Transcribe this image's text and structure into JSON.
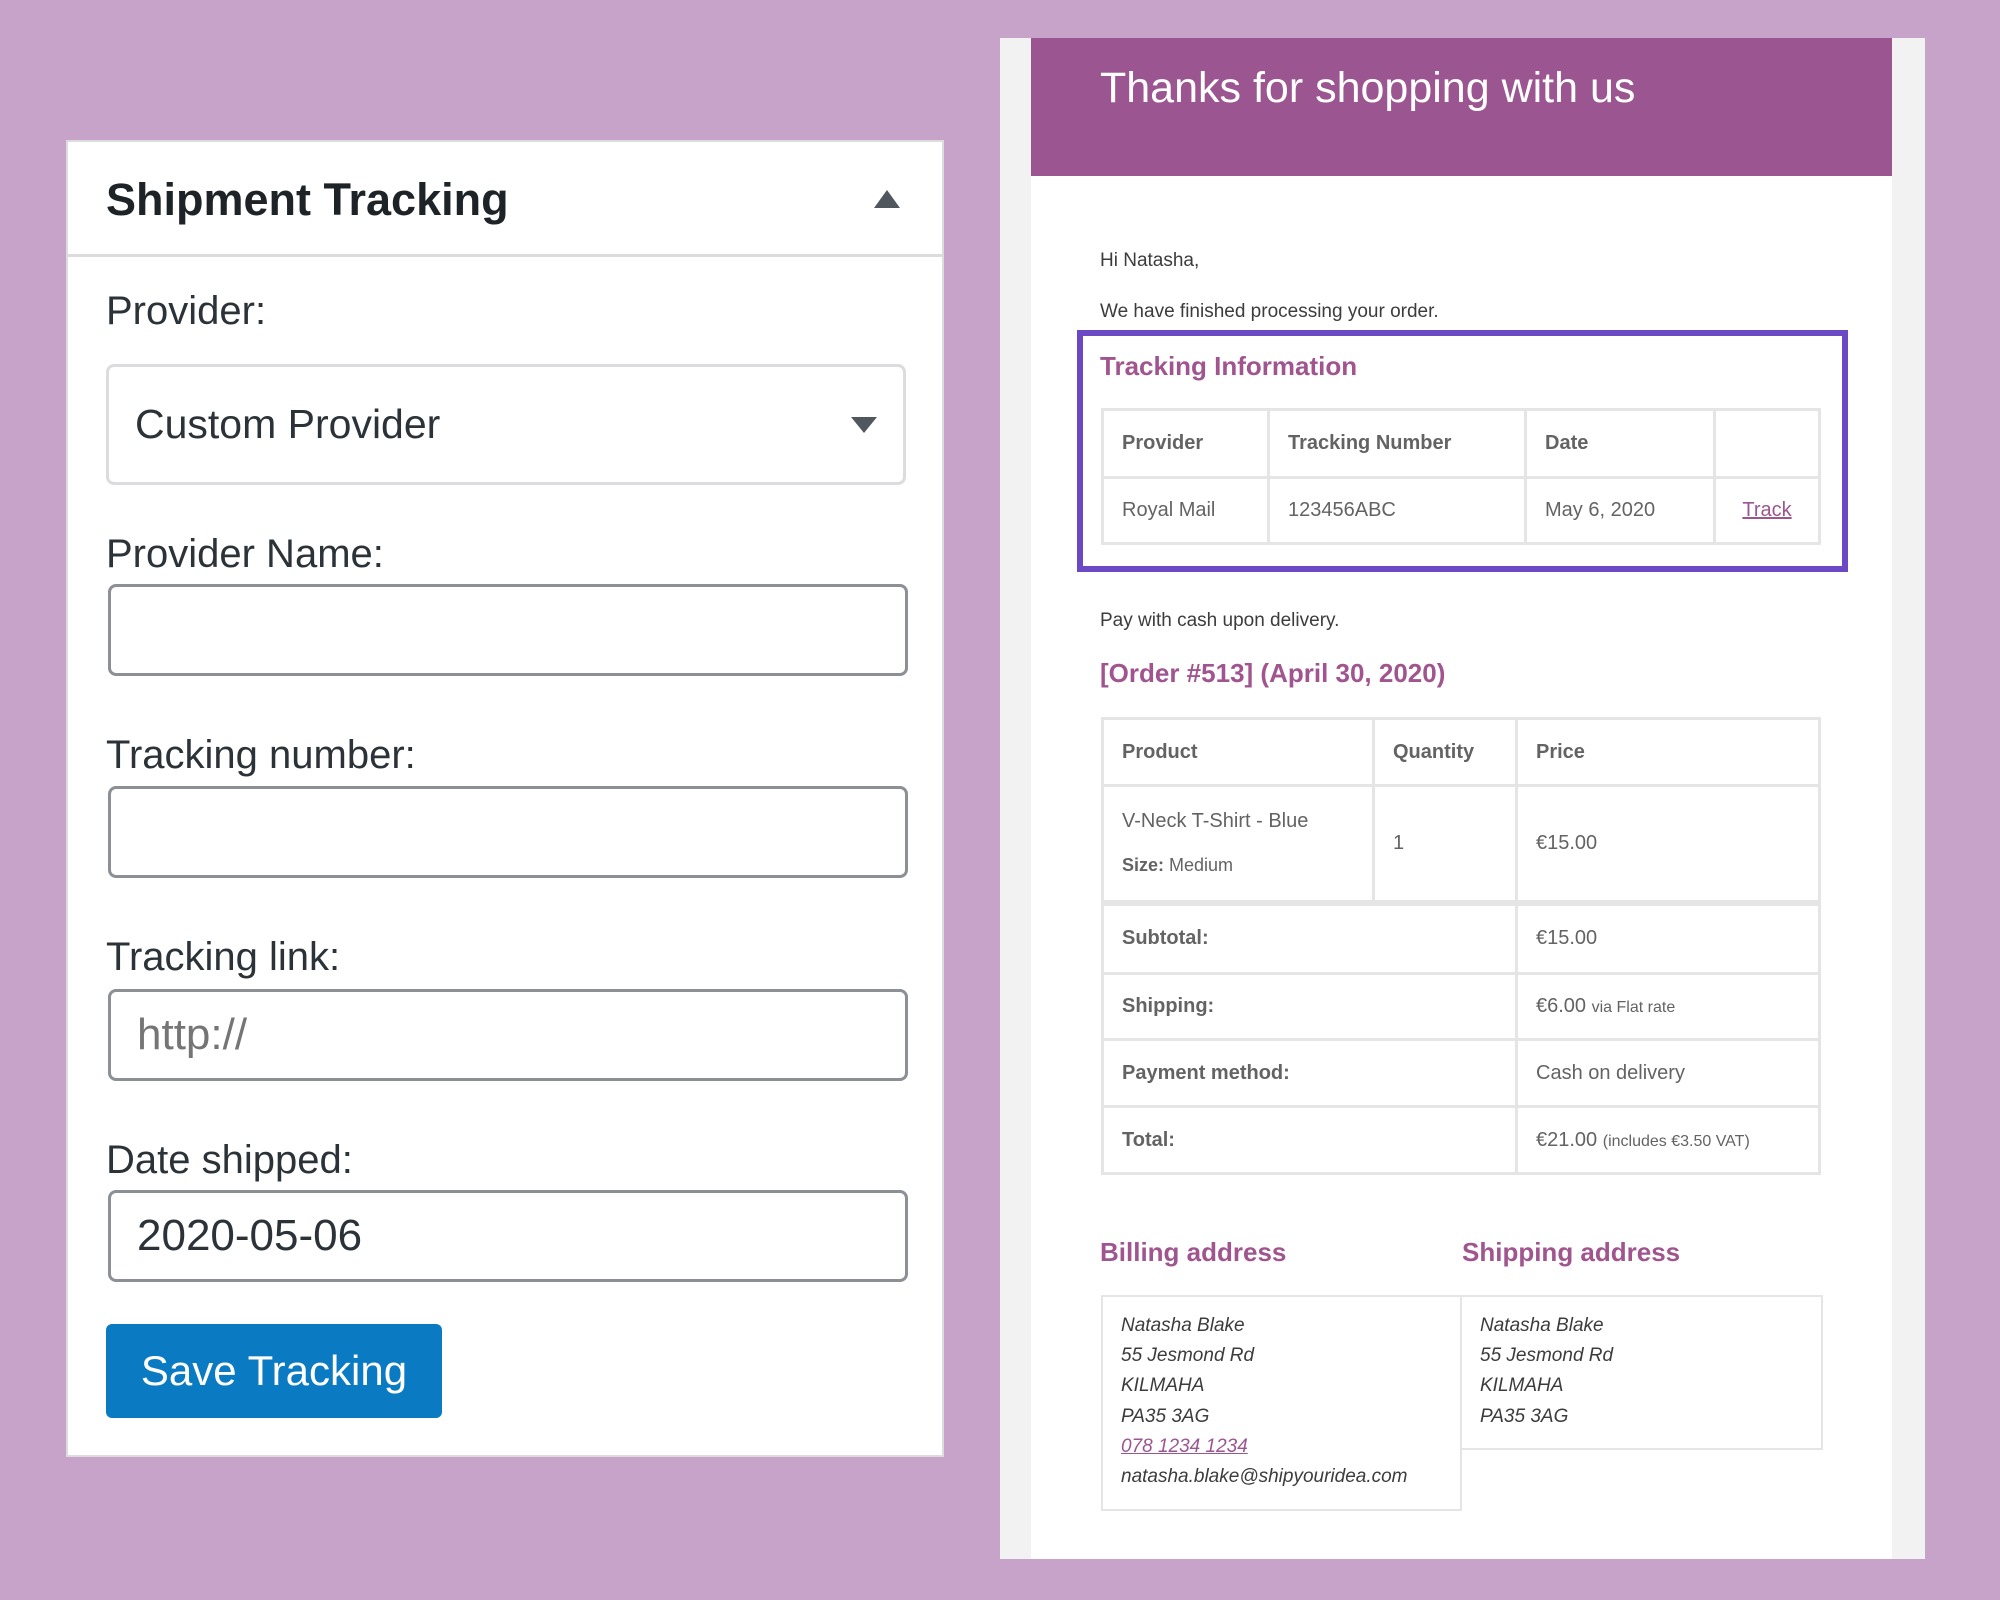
{
  "tracking_panel": {
    "title": "Shipment Tracking",
    "provider_label": "Provider:",
    "provider_value": "Custom Provider",
    "provider_name_label": "Provider Name:",
    "provider_name_value": "",
    "tracking_number_label": "Tracking number:",
    "tracking_number_value": "",
    "tracking_link_label": "Tracking link:",
    "tracking_link_placeholder": "http://",
    "date_label": "Date shipped:",
    "date_value": "2020-05-06",
    "save_label": "Save Tracking"
  },
  "email": {
    "header": "Thanks for shopping with us",
    "greeting": "Hi Natasha,",
    "intro": "We have finished processing your order.",
    "tracking": {
      "title": "Tracking Information",
      "headers": [
        "Provider",
        "Tracking Number",
        "Date",
        ""
      ],
      "row": [
        "Royal Mail",
        "123456ABC",
        "May 6, 2020",
        "Track"
      ]
    },
    "payment_note": "Pay with cash upon delivery.",
    "order_title": "[Order #513] (April 30, 2020)",
    "order": {
      "headers": [
        "Product",
        "Quantity",
        "Price"
      ],
      "item": {
        "name": "V-Neck T-Shirt - Blue",
        "meta_label": "Size:",
        "meta_value": "Medium",
        "qty": "1",
        "price": "€15.00"
      },
      "totals": [
        {
          "label": "Subtotal:",
          "value": "€15.00",
          "note": ""
        },
        {
          "label": "Shipping:",
          "value": "€6.00",
          "note": "via Flat rate"
        },
        {
          "label": "Payment method:",
          "value": "Cash on delivery",
          "note": ""
        },
        {
          "label": "Total:",
          "value": "€21.00",
          "note": "(includes €3.50 VAT)"
        }
      ]
    },
    "billing": {
      "title": "Billing address",
      "lines": [
        "Natasha Blake",
        "55 Jesmond Rd",
        "KILMAHA",
        "PA35 3AG"
      ],
      "phone": "078 1234 1234",
      "email": "natasha.blake@shipyouridea.com"
    },
    "shipping": {
      "title": "Shipping address",
      "lines": [
        "Natasha Blake",
        "55 Jesmond Rd",
        "KILMAHA",
        "PA35 3AG"
      ]
    }
  },
  "colors": {
    "background": "#c7a3c9",
    "brand": "#9b5591",
    "highlight": "#6b48c4",
    "button": "#0a7ac2"
  }
}
